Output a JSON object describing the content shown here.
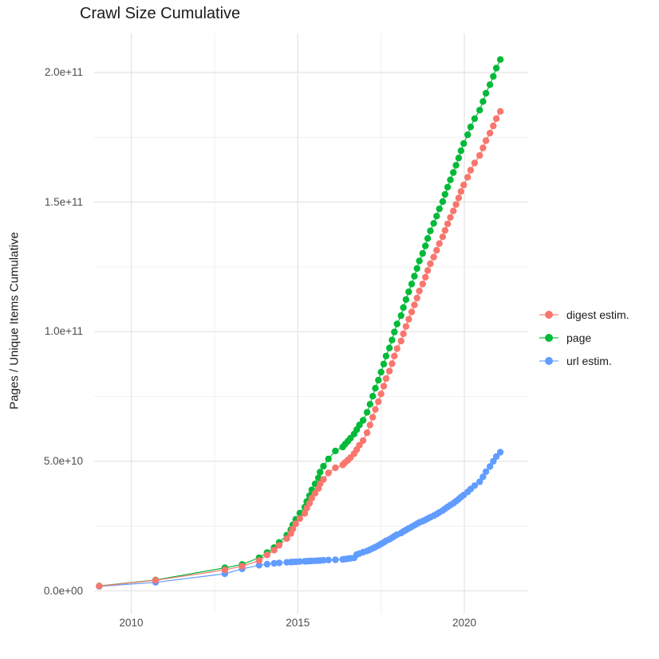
{
  "title": "Crawl Size Cumulative",
  "y_axis": {
    "label": "Pages / Unique Items Cumulative",
    "ticks": [
      "0.0e+00",
      "5.0e+10",
      "1.0e+11",
      "1.5e+11",
      "2.0e+11"
    ],
    "tick_values_e9": [
      0,
      50,
      100,
      150,
      200
    ]
  },
  "x_axis": {
    "ticks": [
      "2010",
      "2015",
      "2020"
    ],
    "tick_values": [
      2010,
      2015,
      2020
    ]
  },
  "legend": [
    {
      "label": "digest estim.",
      "color": "#F8766D"
    },
    {
      "label": "page",
      "color": "#00BA38"
    },
    {
      "label": "url estim.",
      "color": "#619CFF"
    }
  ],
  "chart_data": {
    "type": "scatter",
    "title": "Crawl Size Cumulative",
    "xlabel": "",
    "ylabel": "Pages / Unique Items Cumulative",
    "xlim": [
      2008.6,
      2021.8
    ],
    "ylim_e9": [
      0,
      215
    ],
    "values_scale": "1e9",
    "grid": true,
    "legend_position": "right",
    "x": [
      2009.04,
      2010.73,
      2012.81,
      2013.33,
      2013.84,
      2014.08,
      2014.29,
      2014.44,
      2014.67,
      2014.79,
      2014.85,
      2014.94,
      2015.06,
      2015.21,
      2015.27,
      2015.35,
      2015.42,
      2015.52,
      2015.62,
      2015.67,
      2015.77,
      2015.92,
      2016.13,
      2016.35,
      2016.42,
      2016.5,
      2016.58,
      2016.69,
      2016.77,
      2016.85,
      2016.96,
      2017.08,
      2017.17,
      2017.25,
      2017.33,
      2017.42,
      2017.5,
      2017.58,
      2017.65,
      2017.75,
      2017.83,
      2017.9,
      2017.98,
      2018.1,
      2018.17,
      2018.25,
      2018.33,
      2018.42,
      2018.5,
      2018.58,
      2018.65,
      2018.75,
      2018.83,
      2018.9,
      2018.98,
      2019.08,
      2019.17,
      2019.25,
      2019.35,
      2019.42,
      2019.5,
      2019.58,
      2019.67,
      2019.75,
      2019.83,
      2019.9,
      2019.98,
      2020.1,
      2020.19,
      2020.31,
      2020.46,
      2020.56,
      2020.65,
      2020.77,
      2020.87,
      2020.96,
      2021.08
    ],
    "series": [
      {
        "name": "digest estim.",
        "color": "#F8766D",
        "values": [
          1.85,
          4.1,
          8.1,
          9.5,
          11.7,
          13.9,
          15.7,
          17.6,
          20.2,
          22.1,
          23.9,
          25.9,
          27.9,
          29.9,
          31.9,
          33.8,
          35.8,
          37.7,
          39.5,
          41.3,
          43.0,
          45.5,
          47.5,
          48.6,
          49.5,
          50.4,
          51.4,
          52.9,
          54.5,
          56.2,
          58.0,
          61.0,
          64.0,
          67.0,
          70.0,
          73.0,
          76.0,
          79.0,
          81.9,
          84.8,
          87.7,
          90.6,
          93.5,
          96.4,
          99.2,
          102.0,
          104.8,
          107.6,
          110.3,
          113.0,
          115.7,
          118.4,
          121.0,
          123.6,
          126.2,
          128.8,
          131.4,
          134.0,
          136.6,
          139.1,
          141.6,
          144.1,
          146.6,
          149.1,
          151.6,
          154.1,
          156.6,
          159.6,
          162.3,
          165.1,
          168.0,
          170.9,
          173.7,
          176.6,
          179.4,
          182.2,
          185.0
        ]
      },
      {
        "name": "page",
        "color": "#00BA38",
        "values": [
          1.9,
          4.2,
          8.9,
          10.2,
          12.8,
          14.8,
          16.7,
          18.7,
          21.5,
          23.6,
          25.5,
          27.6,
          30.0,
          32.3,
          34.5,
          36.7,
          39.0,
          41.3,
          43.6,
          45.8,
          48.1,
          50.9,
          54.0,
          55.5,
          56.6,
          57.7,
          58.9,
          60.5,
          62.2,
          64.0,
          65.8,
          68.9,
          72.0,
          75.1,
          78.2,
          81.3,
          84.4,
          87.5,
          90.6,
          93.7,
          96.8,
          99.9,
          103.0,
          106.2,
          109.3,
          112.4,
          115.4,
          118.4,
          121.4,
          124.4,
          127.3,
          130.2,
          133.1,
          136.0,
          138.9,
          141.8,
          144.6,
          147.4,
          150.2,
          153.0,
          155.8,
          158.6,
          161.4,
          164.2,
          167.0,
          169.8,
          172.6,
          176.0,
          179.0,
          182.2,
          185.5,
          188.8,
          192.0,
          195.3,
          198.5,
          201.7,
          205.0
        ]
      },
      {
        "name": "url estim.",
        "color": "#619CFF",
        "values": [
          1.75,
          3.3,
          6.6,
          8.5,
          9.9,
          10.3,
          10.6,
          10.8,
          11.0,
          11.1,
          11.15,
          11.2,
          11.3,
          11.4,
          11.45,
          11.5,
          11.55,
          11.6,
          11.65,
          11.7,
          11.8,
          11.9,
          12.0,
          12.15,
          12.25,
          12.4,
          12.55,
          12.7,
          14.0,
          14.4,
          14.9,
          15.4,
          15.9,
          16.4,
          16.9,
          17.5,
          18.1,
          18.7,
          19.3,
          19.9,
          20.5,
          21.1,
          21.7,
          22.3,
          22.9,
          23.5,
          24.1,
          24.7,
          25.3,
          25.9,
          26.4,
          26.9,
          27.4,
          27.9,
          28.4,
          29.0,
          29.6,
          30.3,
          31.0,
          31.7,
          32.4,
          33.1,
          33.8,
          34.6,
          35.4,
          36.2,
          37.0,
          38.2,
          39.3,
          40.6,
          42.1,
          44.0,
          46.0,
          48.0,
          50.0,
          51.8,
          53.5
        ]
      }
    ]
  }
}
